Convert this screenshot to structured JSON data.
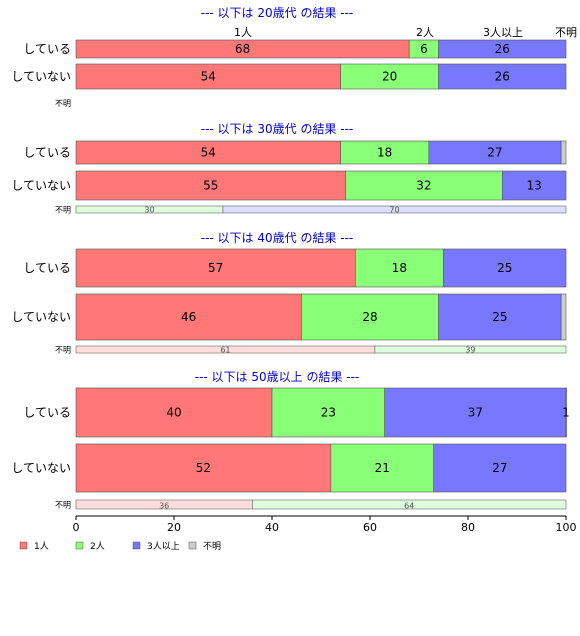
{
  "chart_data": {
    "type": "bar",
    "orientation": "horizontal",
    "stacked": true,
    "percent": true,
    "xlim": [
      0,
      100
    ],
    "xticks": [
      0,
      20,
      40,
      60,
      80,
      100
    ],
    "series_names": [
      "1人",
      "2人",
      "3人以上",
      "不明"
    ],
    "colors": {
      "full": [
        "#ff7777",
        "#88ff77",
        "#7777ff",
        "#cccccc"
      ],
      "light": [
        "#ffdddd",
        "#ddffdd",
        "#ddddff",
        "#eeeeee"
      ],
      "title": "#0000cc"
    },
    "legend_position": "bottom-left",
    "top_labels": [
      "1人",
      "2人",
      "3人以上",
      "不明"
    ],
    "groups": [
      {
        "title": "--- 以下は 20歳代 の結果 ---",
        "rows": [
          {
            "label": "している",
            "values": [
              68,
              6,
              26,
              0
            ],
            "value_labels": [
              "68",
              "6",
              "26",
              ""
            ]
          },
          {
            "label": "していない",
            "values": [
              54,
              20,
              26,
              0
            ],
            "value_labels": [
              "54",
              "20",
              "26",
              ""
            ]
          }
        ],
        "unknown_label": "不明",
        "unknown": null
      },
      {
        "title": "--- 以下は 30歳代 の結果 ---",
        "rows": [
          {
            "label": "している",
            "values": [
              54,
              18,
              27,
              1
            ],
            "value_labels": [
              "54",
              "18",
              "27",
              ""
            ]
          },
          {
            "label": "していない",
            "values": [
              55,
              32,
              13,
              0
            ],
            "value_labels": [
              "55",
              "32",
              "13",
              ""
            ]
          }
        ],
        "unknown_label": "不明",
        "unknown": {
          "values": [
            0,
            30,
            70,
            0
          ],
          "value_labels": [
            "",
            "30",
            "70",
            ""
          ]
        }
      },
      {
        "title": "--- 以下は 40歳代 の結果 ---",
        "rows": [
          {
            "label": "している",
            "values": [
              57,
              18,
              25,
              0
            ],
            "value_labels": [
              "57",
              "18",
              "25",
              ""
            ]
          },
          {
            "label": "していない",
            "values": [
              46,
              28,
              25,
              1
            ],
            "value_labels": [
              "46",
              "28",
              "25",
              ""
            ]
          }
        ],
        "unknown_label": "不明",
        "unknown": {
          "values": [
            61,
            39,
            0,
            0
          ],
          "value_labels": [
            "61",
            "39",
            "",
            ""
          ]
        }
      },
      {
        "title": "--- 以下は 50歳以上 の結果 ---",
        "rows": [
          {
            "label": "している",
            "values": [
              40,
              23,
              37,
              1
            ],
            "value_labels": [
              "40",
              "23",
              "37",
              "1"
            ]
          },
          {
            "label": "していない",
            "values": [
              52,
              21,
              27,
              0
            ],
            "value_labels": [
              "52",
              "21",
              "27",
              ""
            ]
          }
        ],
        "unknown_label": "不明",
        "unknown": {
          "values": [
            36,
            64,
            0,
            0
          ],
          "value_labels": [
            "36",
            "64",
            "",
            ""
          ]
        }
      }
    ]
  }
}
